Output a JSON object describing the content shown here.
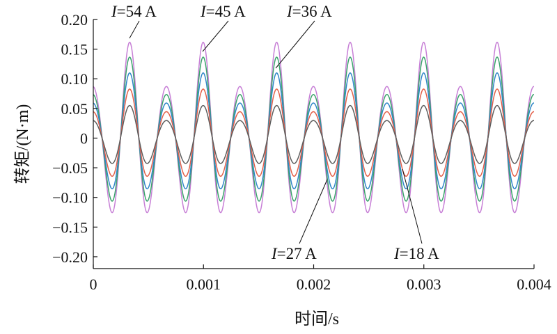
{
  "chart_data": {
    "type": "line",
    "xlabel": "时间/s",
    "ylabel": "转矩/(N·m)",
    "xlim": [
      0,
      0.004
    ],
    "ylim": [
      -0.22,
      0.2
    ],
    "xticks": [
      0,
      0.001,
      0.002,
      0.003,
      0.004
    ],
    "xtick_labels": [
      "0",
      "0.001",
      "0.002",
      "0.003",
      "0.004"
    ],
    "yticks": [
      0.2,
      0.15,
      0.1,
      0.05,
      0,
      -0.05,
      -0.1,
      -0.15,
      -0.2
    ],
    "ytick_labels": [
      "0.20",
      "0.15",
      "0.10",
      "0.05",
      "0",
      "−0.05",
      "−0.10",
      "−0.15",
      "−0.20"
    ],
    "grid": false,
    "waveform": {
      "main_period_s": 0.000667,
      "second_harmonic_fraction": 0.3
    },
    "series": [
      {
        "name": "I=54 A",
        "current": "54 A",
        "color": "#c77fd6",
        "peak_high": 0.172,
        "peak_low": 0.125,
        "trough": -0.165
      },
      {
        "name": "I=45 A",
        "current": "45 A",
        "color": "#3aa36b",
        "peak_high": 0.146,
        "peak_low": 0.105,
        "trough": -0.139
      },
      {
        "name": "I=36 A",
        "current": "36 A",
        "color": "#2f86c8",
        "peak_high": 0.117,
        "peak_low": 0.085,
        "trough": -0.111
      },
      {
        "name": "I=27 A",
        "current": "27 A",
        "color": "#e3604a",
        "peak_high": 0.088,
        "peak_low": 0.064,
        "trough": -0.083
      },
      {
        "name": "I=18 A",
        "current": "18 A",
        "color": "#5e5e5e",
        "peak_high": 0.058,
        "peak_low": 0.043,
        "trough": -0.055
      }
    ],
    "annotations": [
      {
        "italic": "I",
        "rest": "=54 A",
        "series": "I=54 A",
        "x": 0.00033,
        "y": 0.172
      },
      {
        "italic": "I",
        "rest": "=45 A",
        "series": "I=45 A",
        "x": 0.001,
        "y": 0.146
      },
      {
        "italic": "I",
        "rest": "=36 A",
        "series": "I=36 A",
        "x": 0.00165,
        "y": 0.117
      },
      {
        "italic": "I",
        "rest": "=27 A",
        "series": "I=27 A",
        "x": 0.00217,
        "y": -0.083
      },
      {
        "italic": "I",
        "rest": "=18 A",
        "series": "I=18 A",
        "x": 0.0028,
        "y": -0.055
      }
    ]
  }
}
